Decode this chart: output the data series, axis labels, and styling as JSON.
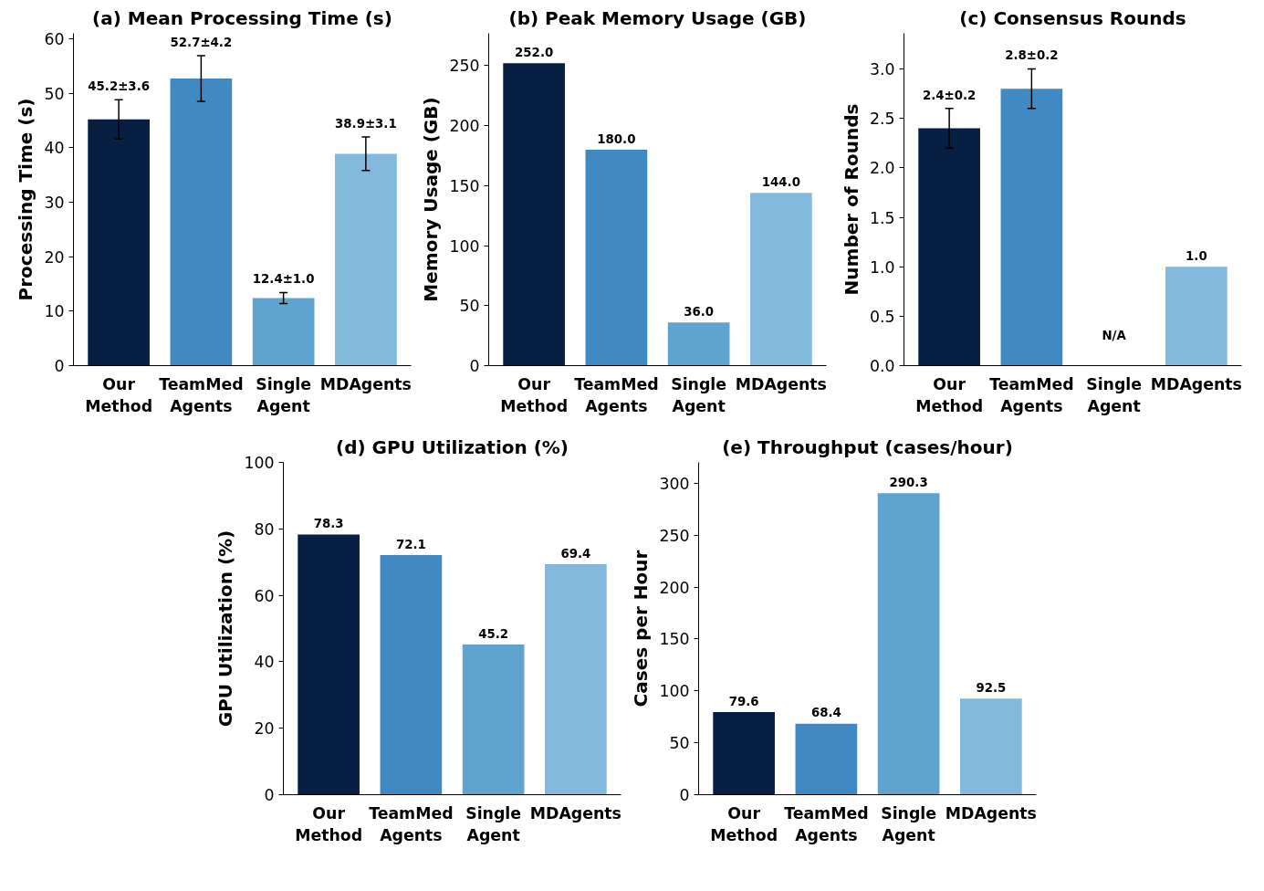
{
  "chart_data": [
    {
      "type": "bar",
      "title": "(a) Mean Processing Time (s)",
      "ylabel": "Processing Time (s)",
      "categories": [
        "Our Method",
        "TeamMed Agents",
        "Single Agent",
        "MDAgents"
      ],
      "values": [
        45.2,
        52.7,
        12.4,
        38.9
      ],
      "errors": [
        3.6,
        4.2,
        1.0,
        3.1
      ],
      "value_labels": [
        "45.2±3.6",
        "52.7±4.2",
        "12.4±1.0",
        "38.9±3.1"
      ],
      "colors": [
        "#061f42",
        "#4189c3",
        "#5ea4cf",
        "#82b9dc"
      ],
      "ylim": [
        0,
        61
      ],
      "yticks": [
        0,
        10,
        20,
        30,
        40,
        50,
        60
      ],
      "grid": false
    },
    {
      "type": "bar",
      "title": "(b) Peak Memory Usage (GB)",
      "ylabel": "Memory Usage (GB)",
      "categories": [
        "Our Method",
        "TeamMed Agents",
        "Single Agent",
        "MDAgents"
      ],
      "values": [
        252.0,
        180.0,
        36.0,
        144.0
      ],
      "value_labels": [
        "252.0",
        "180.0",
        "36.0",
        "144.0"
      ],
      "colors": [
        "#061f42",
        "#4189c3",
        "#5ea4cf",
        "#82b9dc"
      ],
      "ylim": [
        0,
        277
      ],
      "yticks": [
        0,
        50,
        100,
        150,
        200,
        250
      ],
      "grid": false
    },
    {
      "type": "bar",
      "title": "(c) Consensus Rounds",
      "ylabel": "Number of Rounds",
      "categories": [
        "Our Method",
        "TeamMed Agents",
        "Single Agent",
        "MDAgents"
      ],
      "values": [
        2.4,
        2.8,
        null,
        1.0
      ],
      "errors": [
        0.2,
        0.2,
        null,
        null
      ],
      "value_labels": [
        "2.4±0.2",
        "2.8±0.2",
        "N/A",
        "1.0"
      ],
      "colors": [
        "#061f42",
        "#4189c3",
        "#5ea4cf",
        "#82b9dc"
      ],
      "ylim": [
        0,
        3.36
      ],
      "yticks": [
        {
          "value": 0,
          "label": "0.0"
        },
        0.5,
        {
          "value": 1,
          "label": "1.0"
        },
        1.5,
        {
          "value": 2,
          "label": "2.0"
        },
        2.5,
        {
          "value": 3,
          "label": "3.0"
        }
      ],
      "grid": false
    },
    {
      "type": "bar",
      "title": "(d) GPU Utilization (%)",
      "ylabel": "GPU Utilization (%)",
      "categories": [
        "Our Method",
        "TeamMed Agents",
        "Single Agent",
        "MDAgents"
      ],
      "values": [
        78.3,
        72.1,
        45.2,
        69.4
      ],
      "data_labels": true,
      "colors": [
        "#061f42",
        "#4189c3",
        "#5ea4cf",
        "#82b9dc"
      ],
      "ylim": [
        0,
        100
      ],
      "yticks": [
        0,
        20,
        40,
        60,
        80,
        100
      ],
      "grid": false
    },
    {
      "type": "bar",
      "title": "(e) Throughput (cases/hour)",
      "ylabel": "Cases per Hour",
      "categories": [
        "Our Method",
        "TeamMed Agents",
        "Single Agent",
        "MDAgents"
      ],
      "values": [
        79.6,
        68.4,
        290.3,
        92.5
      ],
      "data_labels": true,
      "colors": [
        "#061f42",
        "#4189c3",
        "#5ea4cf",
        "#82b9dc"
      ],
      "ylim": [
        0,
        320
      ],
      "yticks": [
        0,
        50,
        100,
        150,
        200,
        250,
        300
      ],
      "grid": false
    }
  ]
}
